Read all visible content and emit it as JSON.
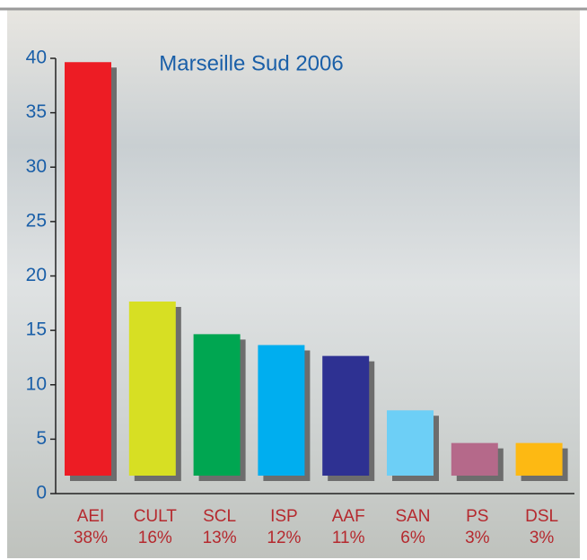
{
  "chart_data": {
    "type": "bar",
    "title": "Marseille Sud 2006",
    "categories": [
      "AEI",
      "CULT",
      "SCL",
      "ISP",
      "AAF",
      "SAN",
      "PS",
      "DSL"
    ],
    "values": [
      38,
      16,
      13,
      12,
      11,
      6,
      3,
      3
    ],
    "value_labels": [
      "38%",
      "16%",
      "13%",
      "12%",
      "11%",
      "6%",
      "3%",
      "3%"
    ],
    "colors": [
      "#ed1c24",
      "#d7df23",
      "#00a651",
      "#00aeef",
      "#2e3192",
      "#6dcff6",
      "#b5698a",
      "#fdb913"
    ],
    "ylim": [
      0,
      40
    ],
    "yticks": [
      0,
      5,
      10,
      15,
      20,
      25,
      30,
      35,
      40
    ]
  }
}
